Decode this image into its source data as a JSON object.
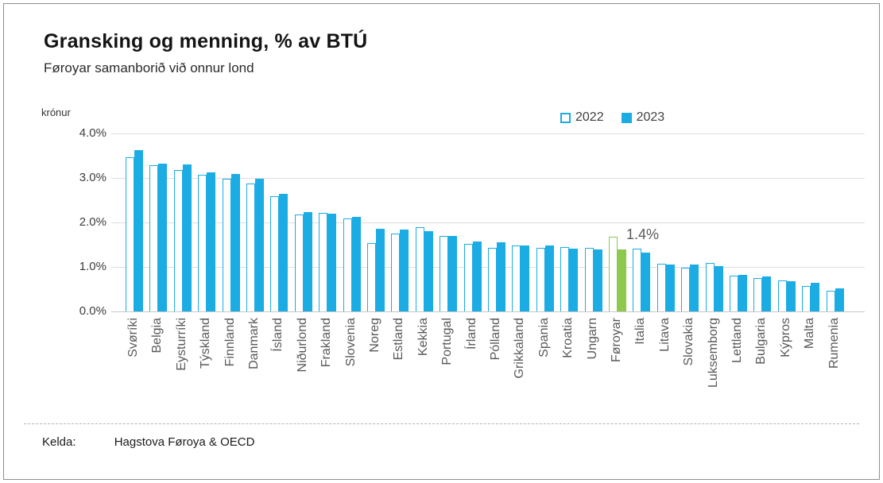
{
  "header": {
    "title": "Gransking og menning, % av BTÚ",
    "subtitle": "Føroyar samanborið við onnur lond"
  },
  "legend": {
    "items": [
      {
        "label": "2022",
        "style": "outline"
      },
      {
        "label": "2023",
        "style": "filled"
      }
    ]
  },
  "annotation": {
    "label": "1.4%"
  },
  "footer": {
    "source_label": "Kelda:",
    "source_value": "Hagstova Føroya & OECD"
  },
  "chart_data": {
    "type": "bar",
    "title": "Gransking og menning, % av BTÚ",
    "subtitle": "Føroyar samanborið við onnur lond",
    "unit_label": "krónur",
    "categories": [
      "Svøríki",
      "Belgia",
      "Eysturríki",
      "Týskland",
      "Finnland",
      "Danmark",
      "Ísland",
      "Niðurlond",
      "Frakland",
      "Slovenia",
      "Noreg",
      "Estland",
      "Kekkia",
      "Portugal",
      "Írland",
      "Pólland",
      "Grikkaland",
      "Spania",
      "Kroatia",
      "Ungarn",
      "Føroyar",
      "Italia",
      "Litava",
      "Slovakia",
      "Luksemborg",
      "Lettland",
      "Bulgaria",
      "Kýpros",
      "Malta",
      "Rumenia"
    ],
    "series": [
      {
        "name": "2022",
        "style": "outline",
        "values": [
          3.46,
          3.28,
          3.18,
          3.08,
          2.98,
          2.88,
          2.59,
          2.17,
          2.21,
          2.09,
          1.54,
          1.75,
          1.89,
          1.69,
          1.52,
          1.43,
          1.48,
          1.42,
          1.44,
          1.42,
          1.67,
          1.41,
          1.08,
          0.99,
          1.09,
          0.8,
          0.75,
          0.69,
          0.57,
          0.47
        ]
      },
      {
        "name": "2023",
        "style": "filled",
        "values": [
          3.62,
          3.33,
          3.3,
          3.12,
          3.09,
          2.98,
          2.64,
          2.23,
          2.2,
          2.12,
          1.85,
          1.84,
          1.81,
          1.7,
          1.57,
          1.55,
          1.48,
          1.49,
          1.41,
          1.39,
          1.4,
          1.32,
          1.06,
          1.05,
          1.02,
          0.83,
          0.79,
          0.68,
          0.65,
          0.52
        ]
      }
    ],
    "highlight_category": "Føroyar",
    "highlight_value_label": "1.4%",
    "y_ticks": [
      "4.0%",
      "3.0%",
      "2.0%",
      "1.0%",
      "0.0%"
    ],
    "ylim": [
      0,
      4
    ],
    "grid": true,
    "legend_position": "top-right",
    "colors": {
      "series_blue": "#1bace4",
      "highlight_green": "#8cc94c",
      "grid": "#dedede"
    }
  }
}
